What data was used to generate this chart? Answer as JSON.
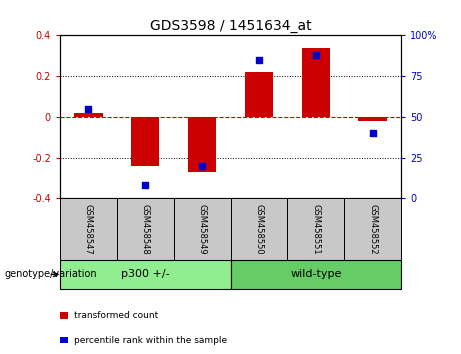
{
  "title": "GDS3598 / 1451634_at",
  "samples": [
    "GSM458547",
    "GSM458548",
    "GSM458549",
    "GSM458550",
    "GSM458551",
    "GSM458552"
  ],
  "bar_values": [
    0.02,
    -0.24,
    -0.27,
    0.22,
    0.34,
    -0.02
  ],
  "percentile_values": [
    55,
    8,
    20,
    85,
    88,
    40
  ],
  "groups": [
    {
      "label": "p300 +/-",
      "start": 0,
      "end": 3,
      "color": "#90EE90"
    },
    {
      "label": "wild-type",
      "start": 3,
      "end": 6,
      "color": "#66CC66"
    }
  ],
  "bar_color": "#CC0000",
  "dot_color": "#0000CC",
  "left_ylim": [
    -0.4,
    0.4
  ],
  "right_ylim": [
    0,
    100
  ],
  "left_yticks": [
    -0.4,
    -0.2,
    0.0,
    0.2,
    0.4
  ],
  "right_yticks": [
    0,
    25,
    50,
    75,
    100
  ],
  "left_yticklabels": [
    "-0.4",
    "-0.2",
    "0",
    "0.2",
    "0.4"
  ],
  "right_yticklabels": [
    "0",
    "25",
    "50",
    "75",
    "100%"
  ],
  "hline_color": "#CC0000",
  "gridline_color": "#000000",
  "genotype_label": "genotype/variation",
  "legend_items": [
    {
      "label": "transformed count",
      "color": "#CC0000"
    },
    {
      "label": "percentile rank within the sample",
      "color": "#0000CC"
    }
  ],
  "bar_width": 0.5,
  "background_plot": "#FFFFFF",
  "background_sample": "#C8C8C8",
  "group_label_fontsize": 8,
  "sample_label_fontsize": 6,
  "tick_label_fontsize": 7,
  "title_fontsize": 10
}
